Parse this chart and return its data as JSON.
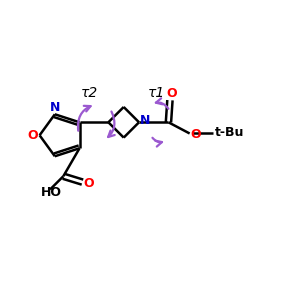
{
  "bg_color": "#ffffff",
  "line_color": "#000000",
  "arrow_color": "#9B59D0",
  "o_color": "#ff0000",
  "n_color": "#0000cc",
  "tau1_label": "τ1",
  "tau2_label": "τ2",
  "tbu_label": "t-Bu",
  "ho_label": "HO",
  "o_label": "O",
  "n_label": "N"
}
